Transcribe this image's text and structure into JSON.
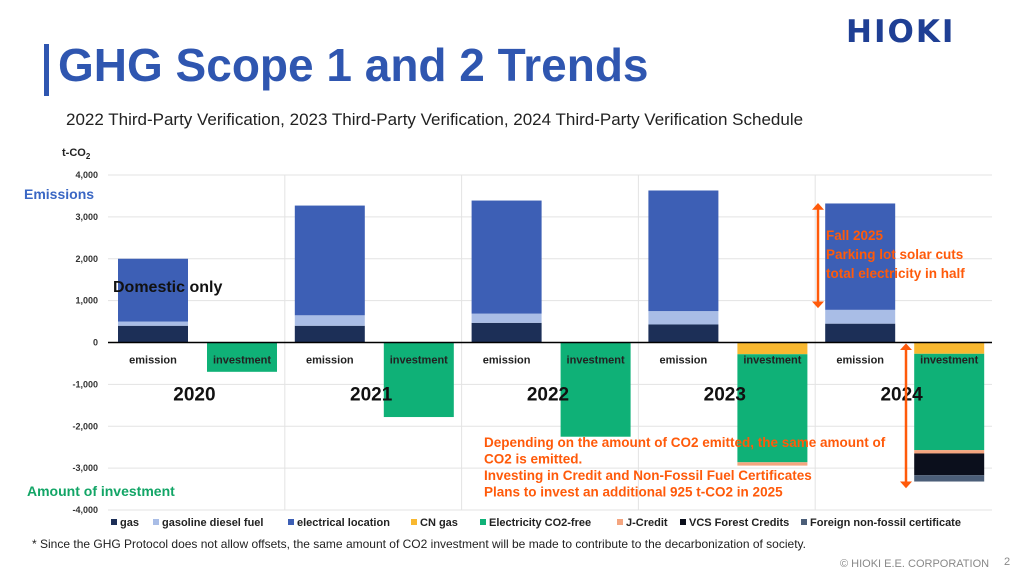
{
  "header": {
    "logo": "HIOKI",
    "title": "GHG Scope 1 and 2 Trends",
    "subtitle": "2022 Third-Party Verification, 2023 Third-Party Verification, 2024 Third-Party Verification Schedule"
  },
  "footer": {
    "footnote": "* Since the GHG Protocol does not allow offsets, the same amount of CO2 investment will be made to contribute to the decarbonization of society.",
    "copyright": "© HIOKI E.E. CORPORATION",
    "page": "2"
  },
  "chart_data": {
    "type": "bar",
    "stacked": true,
    "unit_label": "t-CO",
    "unit_subscript": "2",
    "ylim": [
      -4000,
      4000
    ],
    "yticks": [
      4000,
      3000,
      2000,
      1000,
      0,
      -1000,
      -2000,
      -3000,
      -4000
    ],
    "ytick_labels": [
      "4,000",
      "3,000",
      "2,000",
      "1,000",
      "0",
      "-1,000",
      "-2,000",
      "-3,000",
      "-4,000"
    ],
    "side_labels": {
      "top": "Emissions",
      "bottom": "Amount of investment"
    },
    "years": [
      "2020",
      "2021",
      "2022",
      "2023",
      "2024"
    ],
    "bar_labels": {
      "emission": "emission",
      "investment": "investment"
    },
    "series": [
      {
        "name": "gas",
        "color": "#1c2f57",
        "emission": [
          400,
          400,
          470,
          430,
          450
        ],
        "investment": [
          0,
          0,
          0,
          0,
          0
        ]
      },
      {
        "name": "gasoline diesel fuel",
        "color": "#a9bde6",
        "emission": [
          100,
          250,
          220,
          320,
          330
        ],
        "investment": [
          0,
          0,
          0,
          0,
          0
        ]
      },
      {
        "name": "electrical location",
        "color": "#3d5fb5",
        "emission": [
          1500,
          2620,
          2700,
          2880,
          2540
        ],
        "investment": [
          0,
          0,
          0,
          0,
          0
        ]
      },
      {
        "name": "CN gas",
        "color": "#f8b830",
        "emission": [
          0,
          0,
          0,
          0,
          0
        ],
        "investment": [
          0,
          0,
          0,
          -280,
          -270
        ]
      },
      {
        "name": "Electricity CO2-free",
        "color": "#0fb177",
        "emission": [
          0,
          0,
          0,
          0,
          0
        ],
        "investment": [
          -700,
          -1780,
          -2250,
          -2580,
          -2300
        ]
      },
      {
        "name": "J-Credit",
        "color": "#f4a57f",
        "emission": [
          0,
          0,
          0,
          0,
          0
        ],
        "investment": [
          0,
          0,
          0,
          -80,
          -80
        ]
      },
      {
        "name": "VCS Forest Credits",
        "color": "#0b0f1c",
        "emission": [
          0,
          0,
          0,
          0,
          0
        ],
        "investment": [
          0,
          0,
          0,
          0,
          -520
        ]
      },
      {
        "name": "Foreign non-fossil certificate",
        "color": "#4b5e78",
        "emission": [
          0,
          0,
          0,
          0,
          0
        ],
        "investment": [
          0,
          0,
          0,
          0,
          -150
        ]
      }
    ],
    "annotations": {
      "domestic": "Domestic only",
      "fall2025": [
        "Fall 2025",
        "Parking lot solar cuts",
        "total electricity in half"
      ],
      "investment_note": [
        "Depending on the amount of CO2 emitted, the same amount of",
        "CO2 is emitted.",
        "Investing in Credit and Non-Fossil Fuel Certificates",
        "Plans to invest an additional 925 t-CO2 in 2025"
      ]
    },
    "grid": true,
    "legend_position": "bottom"
  }
}
